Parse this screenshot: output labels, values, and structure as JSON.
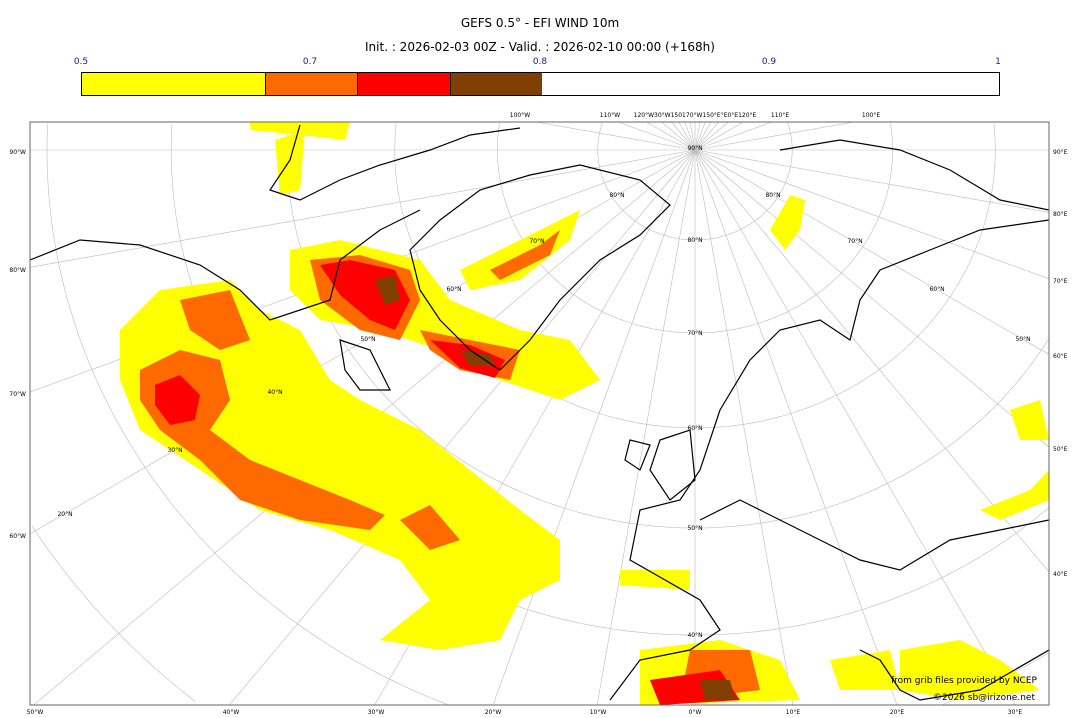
{
  "title": "GEFS 0.5° - EFI WIND 10m",
  "subtitle": "Init. : 2026-02-03 00Z - Valid. : 2026-02-10 00:00 (+168h)",
  "colorbar": {
    "ticks": [
      "0.5",
      "0.7",
      "0.8",
      "0.9",
      "1"
    ],
    "bins": [
      {
        "from": 0.5,
        "to": 0.7,
        "color": "#ffff00"
      },
      {
        "from": 0.7,
        "to": 0.8,
        "color": "#ff6a00"
      },
      {
        "from": 0.8,
        "to": 0.9,
        "color": "#ff0000"
      },
      {
        "from": 0.9,
        "to": 1.0,
        "color": "#7f3f00"
      }
    ]
  },
  "axes": {
    "left": [
      "90°W",
      "80°W",
      "70°W",
      "60°W"
    ],
    "bottom": [
      "50°W",
      "40°W",
      "30°W",
      "20°W",
      "10°W",
      "0°W",
      "10°E",
      "20°E",
      "30°E"
    ],
    "right": [
      "90°E",
      "80°E",
      "70°E",
      "60°E",
      "50°E",
      "40°E"
    ],
    "top": [
      "100°W",
      "110°W",
      "120°W30°W150170°W150°E°E0°E120°E",
      "110°E",
      "100°E"
    ],
    "lat_labels": [
      "90°N",
      "80°N",
      "70°N",
      "60°N",
      "50°N",
      "40°N",
      "70°N",
      "60°N",
      "50°N",
      "40°N",
      "30°N",
      "20°N",
      "70°N",
      "60°N",
      "50°N",
      "80°N",
      "80°N"
    ]
  },
  "credits": {
    "source": "from grib files provided by NCEP",
    "copyright": "©2026 sb@irizone.net"
  }
}
